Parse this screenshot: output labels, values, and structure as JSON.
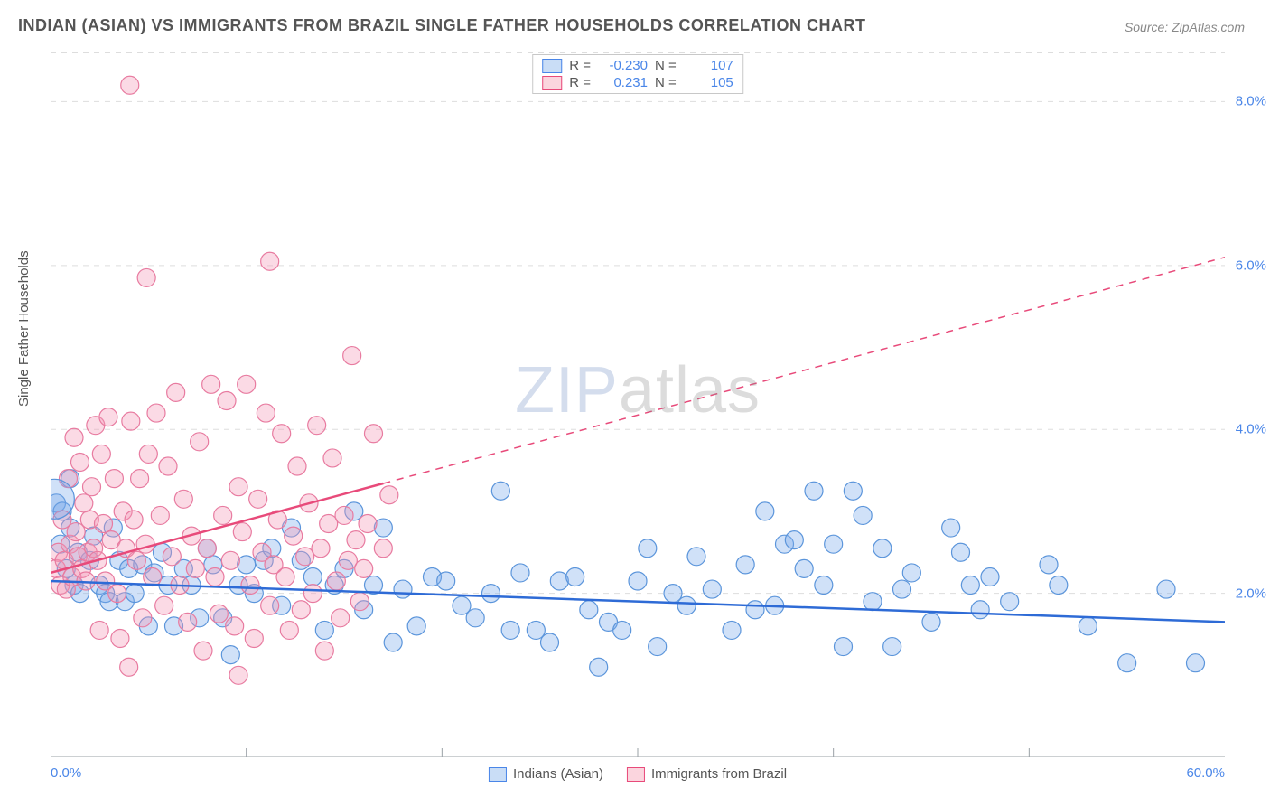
{
  "title": "INDIAN (ASIAN) VS IMMIGRANTS FROM BRAZIL SINGLE FATHER HOUSEHOLDS CORRELATION CHART",
  "source": "Source: ZipAtlas.com",
  "ylabel": "Single Father Households",
  "watermark": {
    "a": "ZIP",
    "b": "atlas"
  },
  "chart": {
    "type": "scatter",
    "xlim": [
      0,
      60
    ],
    "ylim": [
      0,
      8.6
    ],
    "background_color": "#ffffff",
    "grid_color": "#dddddd",
    "grid_dash": "6,6",
    "xticks_major": [
      0,
      60
    ],
    "xticks_minor": [
      10,
      20,
      30,
      40,
      50
    ],
    "yticks": [
      2,
      4,
      6,
      8
    ],
    "xtick_labels": [
      "0.0%",
      "60.0%"
    ],
    "ytick_labels": [
      "2.0%",
      "4.0%",
      "6.0%",
      "8.0%"
    ],
    "tick_color": "#4a86e8",
    "tick_fontsize": 15,
    "axis_line_color": "#9aa0a6",
    "marker_radius": 10,
    "marker_stroke_width": 1.2,
    "trend_line_width": 2.5
  },
  "legend_top": {
    "rows": [
      {
        "swatch_fill": "#c9ddf6",
        "swatch_stroke": "#4a86e8",
        "r_label": "R =",
        "r_value": "-0.230",
        "n_label": "N =",
        "n_value": "107"
      },
      {
        "swatch_fill": "#fbd5de",
        "swatch_stroke": "#e84a7a",
        "r_label": "R =",
        "r_value": "0.231",
        "n_label": "N =",
        "n_value": "105"
      }
    ]
  },
  "legend_bottom": {
    "items": [
      {
        "swatch_fill": "#c9ddf6",
        "swatch_stroke": "#4a86e8",
        "label": "Indians (Asian)"
      },
      {
        "swatch_fill": "#fbd5de",
        "swatch_stroke": "#e84a7a",
        "label": "Immigrants from Brazil"
      }
    ]
  },
  "series": [
    {
      "name": "Indians (Asian)",
      "fill": "rgba(120,170,235,0.35)",
      "stroke": "#5b95db",
      "trend_color": "#2e6bd6",
      "trend": {
        "x1": 0,
        "y1": 2.15,
        "x2": 60,
        "y2": 1.65
      },
      "trend_dash_after_x": null,
      "points": [
        [
          0.3,
          3.1
        ],
        [
          0.5,
          2.6
        ],
        [
          0.6,
          3.0
        ],
        [
          0.8,
          2.3
        ],
        [
          1.0,
          2.8
        ],
        [
          1.0,
          3.4
        ],
        [
          1.2,
          2.1
        ],
        [
          1.4,
          2.5
        ],
        [
          1.5,
          2.0
        ],
        [
          2.0,
          2.4
        ],
        [
          2.2,
          2.7
        ],
        [
          2.5,
          2.1
        ],
        [
          2.8,
          2.0
        ],
        [
          3.0,
          1.9
        ],
        [
          3.2,
          2.8
        ],
        [
          3.5,
          2.4
        ],
        [
          3.8,
          1.9
        ],
        [
          4.0,
          2.3
        ],
        [
          4.3,
          2.0
        ],
        [
          4.7,
          2.35
        ],
        [
          5.0,
          1.6
        ],
        [
          5.3,
          2.25
        ],
        [
          5.7,
          2.5
        ],
        [
          6.0,
          2.1
        ],
        [
          6.3,
          1.6
        ],
        [
          6.8,
          2.3
        ],
        [
          7.2,
          2.1
        ],
        [
          7.6,
          1.7
        ],
        [
          8.0,
          2.55
        ],
        [
          8.3,
          2.35
        ],
        [
          8.8,
          1.7
        ],
        [
          9.2,
          1.25
        ],
        [
          9.6,
          2.1
        ],
        [
          10.0,
          2.35
        ],
        [
          10.4,
          2.0
        ],
        [
          10.9,
          2.4
        ],
        [
          11.3,
          2.55
        ],
        [
          11.8,
          1.85
        ],
        [
          12.3,
          2.8
        ],
        [
          12.8,
          2.4
        ],
        [
          13.4,
          2.2
        ],
        [
          14.0,
          1.55
        ],
        [
          14.5,
          2.1
        ],
        [
          15.0,
          2.3
        ],
        [
          15.5,
          3.0
        ],
        [
          16.0,
          1.8
        ],
        [
          16.5,
          2.1
        ],
        [
          17.0,
          2.8
        ],
        [
          17.5,
          1.4
        ],
        [
          18.0,
          2.05
        ],
        [
          18.7,
          1.6
        ],
        [
          19.5,
          2.2
        ],
        [
          20.2,
          2.15
        ],
        [
          21.0,
          1.85
        ],
        [
          21.7,
          1.7
        ],
        [
          22.5,
          2.0
        ],
        [
          23.0,
          3.25
        ],
        [
          23.5,
          1.55
        ],
        [
          24.0,
          2.25
        ],
        [
          24.8,
          1.55
        ],
        [
          25.5,
          1.4
        ],
        [
          26.0,
          2.15
        ],
        [
          26.8,
          2.2
        ],
        [
          27.5,
          1.8
        ],
        [
          28.0,
          1.1
        ],
        [
          28.5,
          1.65
        ],
        [
          29.2,
          1.55
        ],
        [
          30.0,
          2.15
        ],
        [
          30.5,
          2.55
        ],
        [
          31.0,
          1.35
        ],
        [
          31.8,
          2.0
        ],
        [
          32.5,
          1.85
        ],
        [
          33.0,
          2.45
        ],
        [
          33.8,
          2.05
        ],
        [
          34.8,
          1.55
        ],
        [
          35.5,
          2.35
        ],
        [
          36.0,
          1.8
        ],
        [
          36.5,
          3.0
        ],
        [
          37.0,
          1.85
        ],
        [
          37.5,
          2.6
        ],
        [
          38.0,
          2.65
        ],
        [
          38.5,
          2.3
        ],
        [
          39.0,
          3.25
        ],
        [
          39.5,
          2.1
        ],
        [
          40.0,
          2.6
        ],
        [
          40.5,
          1.35
        ],
        [
          41.0,
          3.25
        ],
        [
          41.5,
          2.95
        ],
        [
          42.0,
          1.9
        ],
        [
          42.5,
          2.55
        ],
        [
          43.0,
          1.35
        ],
        [
          43.5,
          2.05
        ],
        [
          44.0,
          2.25
        ],
        [
          45.0,
          1.65
        ],
        [
          46.0,
          2.8
        ],
        [
          46.5,
          2.5
        ],
        [
          47.0,
          2.1
        ],
        [
          47.5,
          1.8
        ],
        [
          48.0,
          2.2
        ],
        [
          49.0,
          1.9
        ],
        [
          51.0,
          2.35
        ],
        [
          51.5,
          2.1
        ],
        [
          53.0,
          1.6
        ],
        [
          55.0,
          1.15
        ],
        [
          57.0,
          2.05
        ],
        [
          58.5,
          1.15
        ]
      ]
    },
    {
      "name": "Immigrants from Brazil",
      "fill": "rgba(244,150,180,0.35)",
      "stroke": "#e87ba0",
      "trend_color": "#e84a7a",
      "trend": {
        "x1": 0,
        "y1": 2.25,
        "x2": 60,
        "y2": 6.1
      },
      "trend_dash_after_x": 17,
      "points": [
        [
          0.3,
          2.3
        ],
        [
          0.4,
          2.5
        ],
        [
          0.5,
          2.1
        ],
        [
          0.6,
          2.9
        ],
        [
          0.7,
          2.4
        ],
        [
          0.8,
          2.05
        ],
        [
          0.9,
          3.4
        ],
        [
          1.0,
          2.6
        ],
        [
          1.1,
          2.2
        ],
        [
          1.2,
          3.9
        ],
        [
          1.3,
          2.75
        ],
        [
          1.4,
          2.45
        ],
        [
          1.5,
          3.6
        ],
        [
          1.6,
          2.3
        ],
        [
          1.7,
          3.1
        ],
        [
          1.8,
          2.15
        ],
        [
          1.9,
          2.5
        ],
        [
          2.0,
          2.9
        ],
        [
          2.1,
          3.3
        ],
        [
          2.2,
          2.55
        ],
        [
          2.3,
          4.05
        ],
        [
          2.4,
          2.4
        ],
        [
          2.5,
          1.55
        ],
        [
          2.6,
          3.7
        ],
        [
          2.7,
          2.85
        ],
        [
          2.8,
          2.15
        ],
        [
          2.95,
          4.15
        ],
        [
          3.1,
          2.65
        ],
        [
          3.25,
          3.4
        ],
        [
          3.4,
          2.0
        ],
        [
          3.55,
          1.45
        ],
        [
          3.7,
          3.0
        ],
        [
          3.85,
          2.55
        ],
        [
          4.0,
          1.1
        ],
        [
          4.05,
          8.2
        ],
        [
          4.1,
          4.1
        ],
        [
          4.25,
          2.9
        ],
        [
          4.4,
          2.4
        ],
        [
          4.55,
          3.4
        ],
        [
          4.7,
          1.7
        ],
        [
          4.85,
          2.6
        ],
        [
          4.9,
          5.85
        ],
        [
          5.0,
          3.7
        ],
        [
          5.2,
          2.2
        ],
        [
          5.4,
          4.2
        ],
        [
          5.6,
          2.95
        ],
        [
          5.8,
          1.85
        ],
        [
          6.0,
          3.55
        ],
        [
          6.2,
          2.45
        ],
        [
          6.4,
          4.45
        ],
        [
          6.6,
          2.1
        ],
        [
          6.8,
          3.15
        ],
        [
          7.0,
          1.65
        ],
        [
          7.2,
          2.7
        ],
        [
          7.4,
          2.3
        ],
        [
          7.6,
          3.85
        ],
        [
          7.8,
          1.3
        ],
        [
          8.0,
          2.55
        ],
        [
          8.2,
          4.55
        ],
        [
          8.4,
          2.2
        ],
        [
          8.6,
          1.75
        ],
        [
          8.8,
          2.95
        ],
        [
          9.0,
          4.35
        ],
        [
          9.2,
          2.4
        ],
        [
          9.4,
          1.6
        ],
        [
          9.6,
          1.0
        ],
        [
          9.6,
          3.3
        ],
        [
          9.8,
          2.75
        ],
        [
          10.0,
          4.55
        ],
        [
          10.2,
          2.1
        ],
        [
          10.4,
          1.45
        ],
        [
          10.6,
          3.15
        ],
        [
          10.8,
          2.5
        ],
        [
          11.0,
          4.2
        ],
        [
          11.2,
          1.85
        ],
        [
          11.2,
          6.05
        ],
        [
          11.4,
          2.35
        ],
        [
          11.6,
          2.9
        ],
        [
          11.8,
          3.95
        ],
        [
          12.0,
          2.2
        ],
        [
          12.2,
          1.55
        ],
        [
          12.4,
          2.7
        ],
        [
          12.6,
          3.55
        ],
        [
          12.8,
          1.8
        ],
        [
          13.0,
          2.45
        ],
        [
          13.2,
          3.1
        ],
        [
          13.4,
          2.0
        ],
        [
          13.6,
          4.05
        ],
        [
          13.8,
          2.55
        ],
        [
          14.0,
          1.3
        ],
        [
          14.2,
          2.85
        ],
        [
          14.4,
          3.65
        ],
        [
          14.6,
          2.15
        ],
        [
          14.8,
          1.7
        ],
        [
          15.0,
          2.95
        ],
        [
          15.2,
          2.4
        ],
        [
          15.4,
          4.9
        ],
        [
          15.6,
          2.65
        ],
        [
          15.8,
          1.9
        ],
        [
          16.0,
          2.3
        ],
        [
          16.2,
          2.85
        ],
        [
          16.5,
          3.95
        ],
        [
          17.0,
          2.55
        ],
        [
          17.3,
          3.2
        ]
      ]
    }
  ]
}
